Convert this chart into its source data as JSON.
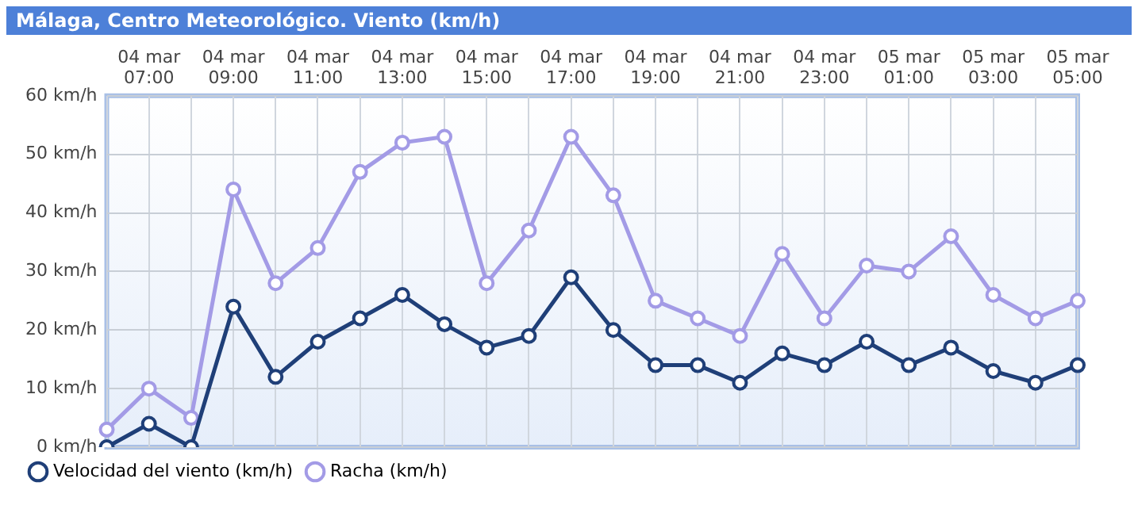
{
  "chart_data": {
    "type": "line",
    "title": "Málaga, Centro Meteorológico. Viento (km/h)",
    "categories": [
      null,
      "04 mar 07:00",
      null,
      "04 mar 09:00",
      null,
      "04 mar 11:00",
      null,
      "04 mar 13:00",
      null,
      "04 mar 15:00",
      null,
      "04 mar 17:00",
      null,
      "04 mar 19:00",
      null,
      "04 mar 21:00",
      null,
      "04 mar 23:00",
      null,
      "05 mar 01:00",
      null,
      "05 mar 03:00",
      null,
      "05 mar 05:00"
    ],
    "series": [
      {
        "name": "Velocidad del viento (km/h)",
        "color": "#1f3f78",
        "values": [
          0,
          4,
          0,
          24,
          12,
          18,
          22,
          26,
          21,
          17,
          19,
          29,
          20,
          14,
          14,
          11,
          16,
          14,
          18,
          14,
          17,
          13,
          11,
          14
        ]
      },
      {
        "name": "Racha (km/h)",
        "color": "#a39be6",
        "values": [
          3,
          10,
          5,
          44,
          28,
          34,
          47,
          52,
          53,
          28,
          37,
          53,
          43,
          25,
          22,
          19,
          33,
          22,
          31,
          30,
          36,
          26,
          22,
          25
        ]
      }
    ],
    "ylim": [
      0,
      60
    ],
    "yticks": [
      {
        "value": 0,
        "label": "0 km/h"
      },
      {
        "value": 10,
        "label": "10 km/h"
      },
      {
        "value": 20,
        "label": "20 km/h"
      },
      {
        "value": 30,
        "label": "30 km/h"
      },
      {
        "value": 40,
        "label": "40 km/h"
      },
      {
        "value": 50,
        "label": "50 km/h"
      },
      {
        "value": 60,
        "label": "60 km/h"
      }
    ],
    "grid": true,
    "legend": "bottom left",
    "marker": "circle",
    "line_style": "solid"
  }
}
